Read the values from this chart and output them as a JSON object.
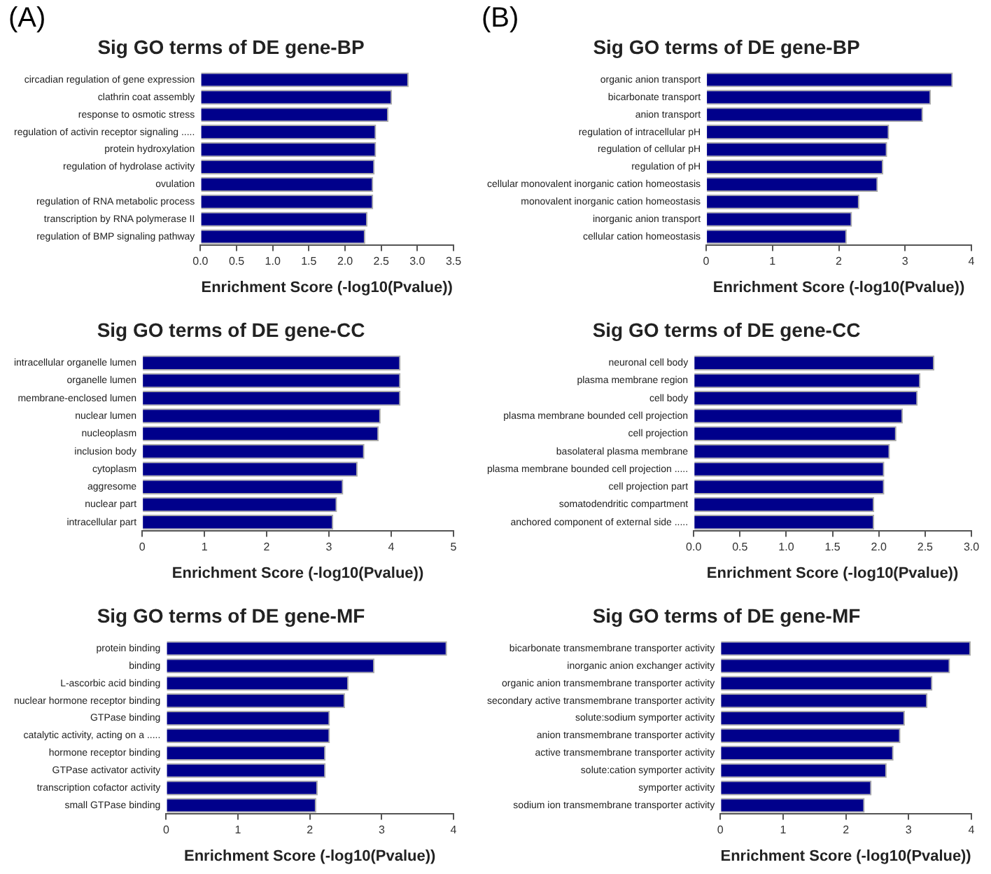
{
  "chart_data": [
    {
      "type": "bar",
      "orientation": "horizontal",
      "title": "Sig GO terms of DE gene-BP",
      "xlabel": "Enrichment Score (-log10(Pvalue))",
      "annotations": [
        "(A)"
      ],
      "color": "#00008b",
      "categories": [
        "circadian regulation of gene expression",
        "clathrin coat assembly",
        "response to osmotic stress",
        "regulation of activin receptor signaling .....",
        "protein hydroxylation",
        "regulation of hydrolase activity",
        "ovulation",
        "regulation of RNA metabolic process",
        "transcription by RNA polymerase II",
        "regulation of BMP signaling pathway"
      ],
      "values": [
        2.88,
        2.65,
        2.6,
        2.43,
        2.43,
        2.41,
        2.39,
        2.39,
        2.31,
        2.28
      ],
      "xlim": [
        0,
        3.5
      ],
      "xticks": [
        {
          "value": 0,
          "label": "0.0"
        },
        {
          "value": 0.5,
          "label": "0.5"
        },
        {
          "value": 1,
          "label": "1.0"
        },
        {
          "value": 1.5,
          "label": "1.5"
        },
        {
          "value": 2,
          "label": "2.0"
        },
        {
          "value": 2.5,
          "label": "2.5"
        },
        {
          "value": 3,
          "label": "3.0"
        },
        {
          "value": 3.5,
          "label": "3.5"
        }
      ],
      "grid": false
    },
    {
      "type": "bar",
      "orientation": "horizontal",
      "title": "Sig GO terms of DE gene-BP",
      "xlabel": "Enrichment Score (-log10(Pvalue))",
      "annotations": [
        "(B)"
      ],
      "color": "#00008b",
      "categories": [
        "organic anion transport",
        "bicarbonate transport",
        "anion transport",
        "regulation of intracellular pH",
        "regulation of cellular pH",
        "regulation of pH",
        "cellular monovalent inorganic cation homeostasis",
        "monovalent inorganic cation homeostasis",
        "inorganic anion transport",
        "cellular cation homeostasis"
      ],
      "values": [
        3.72,
        3.39,
        3.27,
        2.76,
        2.73,
        2.67,
        2.59,
        2.31,
        2.2,
        2.12
      ],
      "xlim": [
        0,
        4
      ],
      "xticks": [
        0,
        1,
        2,
        3,
        4
      ],
      "grid": false
    },
    {
      "type": "bar",
      "orientation": "horizontal",
      "title": "Sig GO terms of DE gene-CC",
      "xlabel": "Enrichment Score (-log10(Pvalue))",
      "color": "#00008b",
      "categories": [
        "intracellular organelle lumen",
        "organelle lumen",
        "membrane-enclosed lumen",
        "nuclear lumen",
        "nucleoplasm",
        "inclusion body",
        "cytoplasm",
        "aggresome",
        "nuclear part",
        "intracellular part"
      ],
      "values": [
        4.15,
        4.15,
        4.15,
        3.83,
        3.8,
        3.57,
        3.46,
        3.23,
        3.13,
        3.07
      ],
      "xlim": [
        0,
        5
      ],
      "xticks": [
        0,
        1,
        2,
        3,
        4,
        5
      ],
      "grid": false
    },
    {
      "type": "bar",
      "orientation": "horizontal",
      "title": "Sig GO terms of DE gene-CC",
      "xlabel": "Enrichment Score (-log10(Pvalue))",
      "color": "#00008b",
      "categories": [
        "neuronal cell body",
        "plasma membrane region",
        "cell body",
        "plasma membrane bounded cell projection",
        "cell projection",
        "basolateral plasma membrane",
        "plasma membrane bounded cell projection .....",
        "cell projection part",
        "somatodendritic compartment",
        "anchored component of external side ....."
      ],
      "values": [
        2.6,
        2.45,
        2.42,
        2.26,
        2.19,
        2.12,
        2.06,
        2.06,
        1.95,
        1.95
      ],
      "xlim": [
        0,
        3
      ],
      "xticks": [
        {
          "value": 0,
          "label": "0.0"
        },
        {
          "value": 0.5,
          "label": "0.5"
        },
        {
          "value": 1,
          "label": "1.0"
        },
        {
          "value": 1.5,
          "label": "1.5"
        },
        {
          "value": 2,
          "label": "2.0"
        },
        {
          "value": 2.5,
          "label": "2.5"
        },
        {
          "value": 3,
          "label": "3.0"
        }
      ],
      "grid": false
    },
    {
      "type": "bar",
      "orientation": "horizontal",
      "title": "Sig GO terms of DE gene-MF",
      "xlabel": "Enrichment Score (-log10(Pvalue))",
      "color": "#00008b",
      "categories": [
        "protein binding",
        "binding",
        "L-ascorbic acid binding",
        "nuclear hormone receptor binding",
        "GTPase binding",
        "catalytic activity, acting on a .....",
        "hormone receptor binding",
        "GTPase activator activity",
        "transcription cofactor activity",
        "small GTPase binding"
      ],
      "values": [
        3.91,
        2.9,
        2.54,
        2.49,
        2.28,
        2.28,
        2.22,
        2.22,
        2.11,
        2.09
      ],
      "xlim": [
        0,
        4
      ],
      "xticks": [
        0,
        1,
        2,
        3,
        4
      ],
      "grid": false
    },
    {
      "type": "bar",
      "orientation": "horizontal",
      "title": "Sig GO terms of DE gene-MF",
      "xlabel": "Enrichment Score (-log10(Pvalue))",
      "color": "#00008b",
      "categories": [
        "bicarbonate transmembrane transporter activity",
        "inorganic anion exchanger activity",
        "organic anion transmembrane transporter activity",
        "secondary active transmembrane transporter activity",
        "solute:sodium symporter activity",
        "anion transmembrane transporter activity",
        "active transmembrane transporter activity",
        "solute:cation symporter activity",
        "symporter activity",
        "sodium ion transmembrane transporter activity"
      ],
      "values": [
        3.99,
        3.66,
        3.38,
        3.3,
        2.94,
        2.87,
        2.76,
        2.65,
        2.41,
        2.3
      ],
      "xlim": [
        0,
        4
      ],
      "xticks": [
        0,
        1,
        2,
        3,
        4
      ],
      "grid": false
    }
  ]
}
